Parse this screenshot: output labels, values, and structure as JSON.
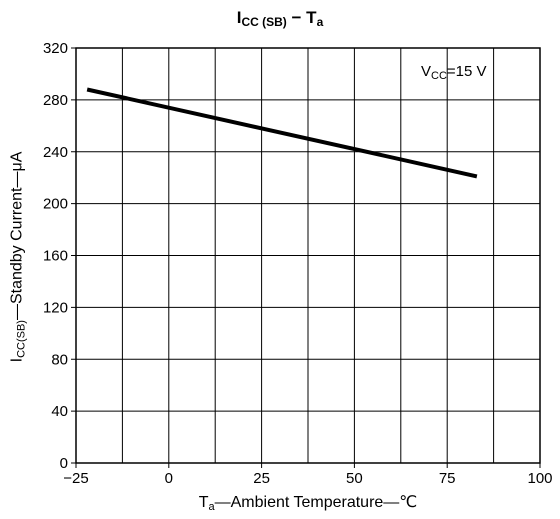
{
  "chart_data": {
    "type": "line",
    "title": {
      "main": "I",
      "sub": "CC (SB)",
      "rest": " − T",
      "sub2": "a"
    },
    "xlabel": {
      "main": "T",
      "sub": "a",
      "rest": "—Ambient Temperature—℃"
    },
    "ylabel": {
      "main": "I",
      "sub": "CC(SB)",
      "rest": "—Standby Current—μA"
    },
    "annotation": {
      "main": "V",
      "sub": "CC",
      "rest": "=15  V"
    },
    "xlim": [
      -25,
      100
    ],
    "ylim": [
      0,
      320
    ],
    "x_ticks": [
      -25,
      0,
      25,
      50,
      75,
      100
    ],
    "x_tick_labels": [
      "−25",
      "0",
      "25",
      "50",
      "75",
      "100"
    ],
    "y_ticks": [
      0,
      40,
      80,
      120,
      160,
      200,
      240,
      280,
      320
    ],
    "y_tick_labels": [
      "0",
      "40",
      "80",
      "120",
      "160",
      "200",
      "240",
      "280",
      "320"
    ],
    "x_minor_step": 12.5,
    "grid": true,
    "series": [
      {
        "x": [
          -22,
          83
        ],
        "y": [
          288,
          221
        ]
      }
    ],
    "colors": {
      "line": "#000000",
      "grid": "#000000",
      "background": "#ffffff"
    }
  }
}
